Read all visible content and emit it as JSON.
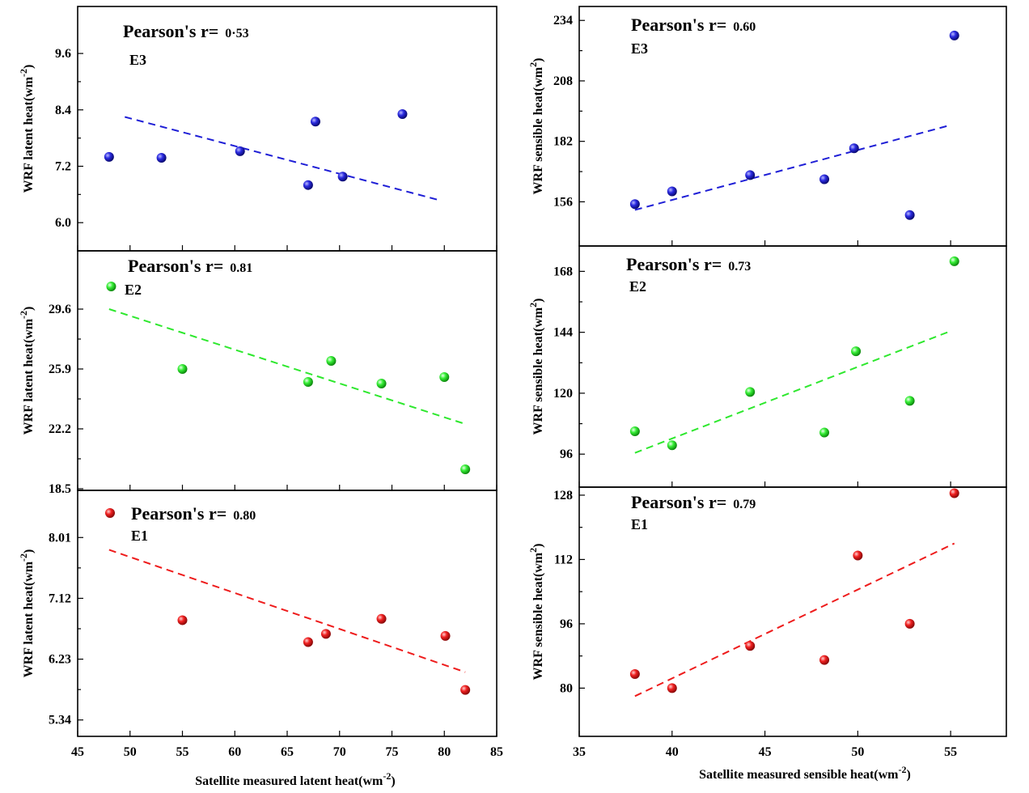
{
  "figure": {
    "left_xlabel": "Satellite measured  latent heat(wm",
    "left_xlabel_sup": "-2",
    "left_xlabel_tail": ")",
    "right_xlabel": "Satellite measured sensible heat(wm",
    "right_xlabel_sup": "-2",
    "right_xlabel_tail": ")"
  },
  "colors": {
    "E3": "#1f1fd6",
    "E2": "#2ee82e",
    "E1": "#ee1c1c"
  },
  "chart_data": [
    {
      "id": "latent-E3",
      "type": "scatter",
      "experiment": "E3",
      "title": "Pearson's r=",
      "r": "0.53",
      "r_display": "0·53",
      "xlabel": "Satellite measured  latent heat(wm-2)",
      "ylabel": "WRF  latent heat(wm",
      "ylabel_sup": "-2",
      "ylabel_tail": ")",
      "xlim": [
        45,
        85
      ],
      "ylim": [
        5.4,
        10.6
      ],
      "xticks": [
        45,
        50,
        55,
        60,
        65,
        70,
        75,
        80,
        85
      ],
      "yticks": [
        6.0,
        7.2,
        8.4,
        9.6
      ],
      "ytick_labels": [
        "6.0",
        "7.2",
        "8.4",
        "9.6"
      ],
      "x": [
        48.0,
        53.0,
        60.5,
        67.0,
        67.7,
        70.3,
        76.0
      ],
      "y": [
        7.4,
        7.38,
        7.52,
        6.8,
        8.15,
        6.98,
        8.31
      ],
      "fit": {
        "x": [
          49.5,
          79.5
        ],
        "y": [
          8.25,
          6.48
        ]
      }
    },
    {
      "id": "sensible-E3",
      "type": "scatter",
      "experiment": "E3",
      "title": "Pearson's r=",
      "r": "0.60",
      "r_display": "0.60",
      "xlabel": "Satellite measured sensible heat(wm-2)",
      "ylabel": "WRF sensible heat(wm",
      "ylabel_sup": "2",
      "ylabel_tail": ")",
      "xlim": [
        35,
        58
      ],
      "ylim": [
        137,
        240
      ],
      "xticks": [
        35,
        40,
        45,
        50,
        55
      ],
      "yticks": [
        156,
        182,
        208,
        234
      ],
      "ytick_labels": [
        "156",
        "182",
        "208",
        "234"
      ],
      "x": [
        38.0,
        40.0,
        44.2,
        48.2,
        49.8,
        52.8,
        55.2
      ],
      "y": [
        155.0,
        160.5,
        167.5,
        165.7,
        179.0,
        150.3,
        227.5
      ],
      "fit": {
        "x": [
          38.0,
          55.0
        ],
        "y": [
          152.5,
          189.0
        ]
      }
    },
    {
      "id": "latent-E2",
      "type": "scatter",
      "experiment": "E2",
      "title": "Pearson's r=",
      "r": "0.81",
      "r_display": "0.81",
      "xlabel": "Satellite measured  latent heat(wm-2)",
      "ylabel": "WRF  latent heat(wm",
      "ylabel_sup": "-2",
      "ylabel_tail": ")",
      "xlim": [
        45,
        85
      ],
      "ylim": [
        18.4,
        33.2
      ],
      "xticks": [
        45,
        50,
        55,
        60,
        65,
        70,
        75,
        80,
        85
      ],
      "yticks": [
        18.5,
        22.2,
        25.9,
        29.6
      ],
      "ytick_labels": [
        "18.5",
        "22.2",
        "25.9",
        "29.6"
      ],
      "x": [
        48.2,
        55.0,
        67.0,
        69.2,
        74.0,
        80.0,
        82.0
      ],
      "y": [
        31.0,
        25.9,
        25.1,
        26.4,
        25.0,
        25.4,
        19.7
      ],
      "fit": {
        "x": [
          48.0,
          82.0
        ],
        "y": [
          29.6,
          22.5
        ]
      }
    },
    {
      "id": "sensible-E2",
      "type": "scatter",
      "experiment": "E2",
      "title": "Pearson's r=",
      "r": "0.73",
      "r_display": "0.73",
      "xlabel": "Satellite measured sensible heat(wm-2)",
      "ylabel": "WRF sensible heat(wm",
      "ylabel_sup": "2",
      "ylabel_tail": ")",
      "xlim": [
        35,
        58
      ],
      "ylim": [
        83,
        178
      ],
      "xticks": [
        35,
        40,
        45,
        50,
        55
      ],
      "yticks": [
        96,
        120,
        144,
        168
      ],
      "ytick_labels": [
        "96",
        "120",
        "144",
        "168"
      ],
      "x": [
        38.0,
        40.0,
        44.2,
        48.2,
        49.9,
        52.8,
        55.2
      ],
      "y": [
        105.0,
        99.5,
        120.5,
        104.5,
        136.5,
        117.0,
        172.0
      ],
      "fit": {
        "x": [
          38.0,
          55.0
        ],
        "y": [
          96.5,
          144.5
        ]
      }
    },
    {
      "id": "latent-E1",
      "type": "scatter",
      "experiment": "E1",
      "title": "Pearson's r=",
      "r": "0.80",
      "r_display": "0.80",
      "xlabel": "Satellite measured  latent heat(wm-2)",
      "ylabel": "WRF  latent heat(wm",
      "ylabel_sup": "-2",
      "ylabel_tail": ")",
      "xlim": [
        45,
        85
      ],
      "ylim": [
        5.1,
        8.7
      ],
      "xticks": [
        45,
        50,
        55,
        60,
        65,
        70,
        75,
        80,
        85
      ],
      "yticks": [
        5.34,
        6.23,
        7.12,
        8.01
      ],
      "ytick_labels": [
        "5.34",
        "6.23",
        "7.12",
        "8.01"
      ],
      "x": [
        55.0,
        67.0,
        68.7,
        74.0,
        80.1,
        82.0
      ],
      "y": [
        6.8,
        6.48,
        6.6,
        6.82,
        6.57,
        5.78
      ],
      "fit": {
        "x": [
          48.0,
          82.0
        ],
        "y": [
          7.83,
          6.04
        ]
      }
    },
    {
      "id": "sensible-E1",
      "type": "scatter",
      "experiment": "E1",
      "title": "Pearson's r=",
      "r": "0.79",
      "r_display": "0.79",
      "xlabel": "Satellite measured sensible heat(wm-2)",
      "ylabel": "WRF sensible heat(wm",
      "ylabel_sup": "2",
      "ylabel_tail": ")",
      "xlim": [
        35,
        58
      ],
      "ylim": [
        68,
        130
      ],
      "xticks": [
        35,
        40,
        45,
        50,
        55
      ],
      "yticks": [
        80,
        96,
        112,
        128
      ],
      "ytick_labels": [
        "80",
        "96",
        "112",
        "128"
      ],
      "x": [
        38.0,
        40.0,
        44.2,
        48.2,
        50.0,
        52.8,
        55.2
      ],
      "y": [
        83.5,
        80.0,
        90.5,
        87.0,
        113.0,
        96.0,
        128.5
      ],
      "fit": {
        "x": [
          38.0,
          55.2
        ],
        "y": [
          78.0,
          116.0
        ]
      }
    }
  ]
}
